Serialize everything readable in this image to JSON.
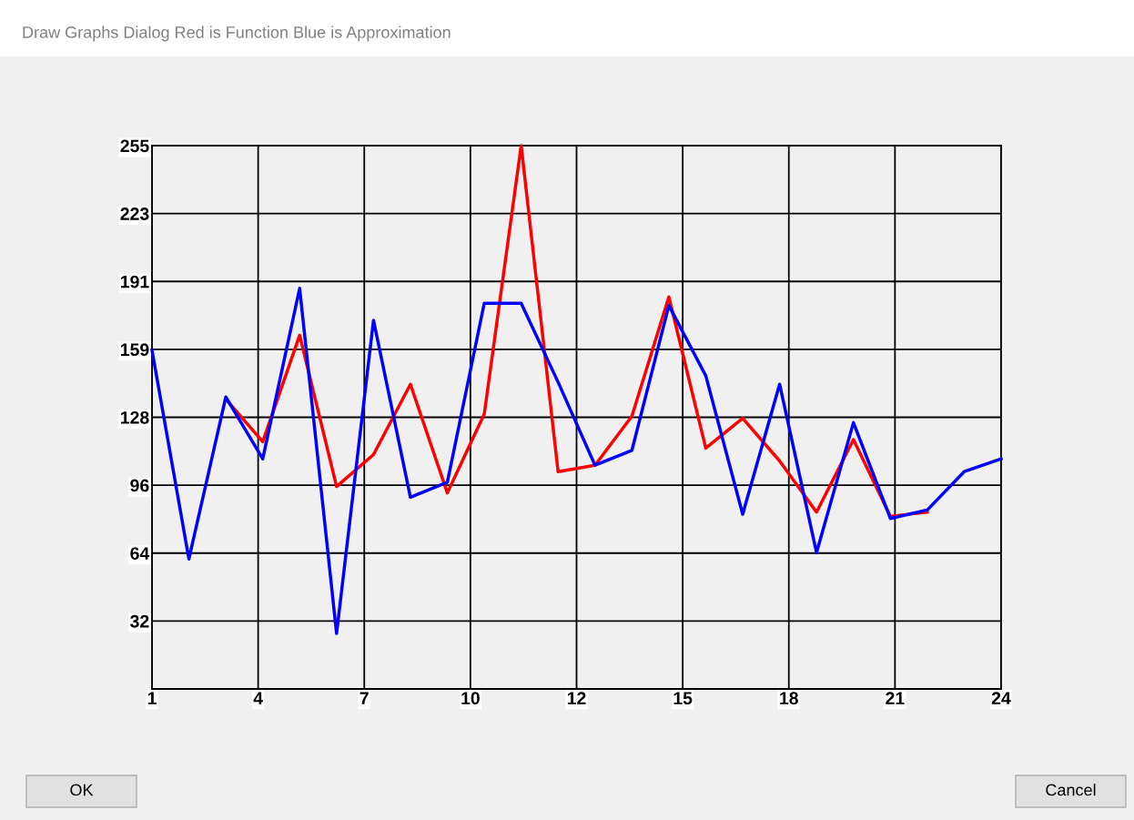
{
  "chart_data": {
    "type": "line",
    "title": "Draw Graphs Dialog Red is Function Blue is Approximation",
    "x": [
      1,
      2,
      3,
      4,
      5,
      6,
      7,
      8,
      9,
      10,
      11,
      12,
      13,
      14,
      15,
      16,
      17,
      18,
      19,
      20,
      21,
      22,
      23,
      24
    ],
    "series": [
      {
        "color": "#ff0000",
        "values": [
          null,
          null,
          136,
          116,
          166,
          95,
          110,
          143,
          92,
          129,
          255,
          102,
          105,
          128,
          184,
          113,
          127,
          107,
          83,
          117,
          81,
          83,
          null,
          null
        ]
      },
      {
        "color": "#0000ff",
        "values": [
          159,
          61,
          137,
          108,
          188,
          26,
          173,
          90,
          97,
          181,
          181,
          144,
          105,
          112,
          180,
          147,
          82,
          143,
          64,
          125,
          80,
          84,
          102,
          108
        ]
      }
    ],
    "xlim": [
      1,
      24
    ],
    "xticks": [
      {
        "value": 1,
        "label": "1"
      },
      {
        "value": 3.875,
        "label": "4"
      },
      {
        "value": 6.75,
        "label": "7"
      },
      {
        "value": 9.625,
        "label": "10"
      },
      {
        "value": 12.5,
        "label": "12"
      },
      {
        "value": 15.375,
        "label": "15"
      },
      {
        "value": 18.25,
        "label": "18"
      },
      {
        "value": 21.125,
        "label": "21"
      },
      {
        "value": 24,
        "label": "24"
      }
    ],
    "ylim": [
      0,
      255
    ],
    "yticks": [
      {
        "value": 31.875,
        "label": "32"
      },
      {
        "value": 63.75,
        "label": "64"
      },
      {
        "value": 95.625,
        "label": "96"
      },
      {
        "value": 127.5,
        "label": "128"
      },
      {
        "value": 159.375,
        "label": "159"
      },
      {
        "value": 191.25,
        "label": "191"
      },
      {
        "value": 223.125,
        "label": "223"
      },
      {
        "value": 255,
        "label": "255"
      }
    ],
    "grid": true,
    "marker": "none",
    "line_style": "solid",
    "annotations": [
      "OK",
      "Cancel"
    ]
  }
}
